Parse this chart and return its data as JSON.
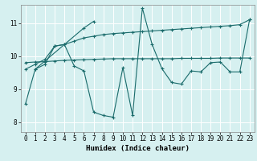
{
  "xlabel": "Humidex (Indice chaleur)",
  "bg_color": "#d6f0f0",
  "line_color": "#1a6b6b",
  "grid_color": "#ffffff",
  "xlim": [
    -0.5,
    23.5
  ],
  "ylim": [
    7.7,
    11.55
  ],
  "yticks": [
    8,
    9,
    10,
    11
  ],
  "xticks": [
    0,
    1,
    2,
    3,
    4,
    5,
    6,
    7,
    8,
    9,
    10,
    11,
    12,
    13,
    14,
    15,
    16,
    17,
    18,
    19,
    20,
    21,
    22,
    23
  ],
  "line1_x": [
    0,
    1,
    2,
    3,
    4,
    5,
    6,
    7,
    8,
    9,
    10,
    11,
    12,
    13,
    14,
    15,
    16,
    17,
    18,
    19,
    20,
    21,
    22,
    23
  ],
  "line1_y": [
    9.8,
    9.82,
    9.83,
    9.85,
    9.87,
    9.88,
    9.89,
    9.9,
    9.91,
    9.92,
    9.92,
    9.92,
    9.92,
    9.92,
    9.92,
    9.92,
    9.93,
    9.93,
    9.93,
    9.93,
    9.94,
    9.94,
    9.94,
    9.94
  ],
  "line2_x": [
    0,
    1,
    2,
    3,
    4,
    5,
    6,
    7,
    8,
    9,
    10,
    11,
    12,
    13,
    14,
    15,
    16,
    17,
    18,
    19,
    20,
    21,
    22,
    23
  ],
  "line2_y": [
    9.6,
    9.75,
    9.9,
    10.3,
    10.35,
    10.45,
    10.55,
    10.6,
    10.65,
    10.68,
    10.7,
    10.72,
    10.74,
    10.76,
    10.78,
    10.8,
    10.82,
    10.84,
    10.86,
    10.88,
    10.9,
    10.92,
    10.95,
    11.1
  ],
  "line3_x": [
    0,
    1,
    2,
    3,
    4,
    5,
    6,
    7,
    8,
    9,
    10,
    11,
    12,
    13,
    14,
    15,
    16,
    17,
    18,
    19,
    20,
    21,
    22,
    23
  ],
  "line3_y": [
    8.55,
    9.6,
    null,
    null,
    null,
    null,
    10.85,
    11.05,
    null,
    null,
    null,
    null,
    null,
    null,
    null,
    null,
    null,
    null,
    null,
    null,
    null,
    null,
    null,
    null
  ],
  "line4_x": [
    1,
    2,
    3,
    4,
    5,
    6,
    7,
    8,
    9,
    10,
    11,
    12,
    13,
    14,
    15,
    16,
    17,
    18,
    19,
    20,
    21,
    22,
    23
  ],
  "line4_y": [
    9.6,
    9.75,
    10.3,
    10.35,
    9.7,
    9.55,
    8.3,
    8.2,
    8.15,
    9.65,
    8.2,
    11.45,
    10.35,
    9.62,
    9.2,
    9.15,
    9.55,
    9.52,
    9.8,
    9.82,
    9.52,
    9.52,
    11.1
  ]
}
